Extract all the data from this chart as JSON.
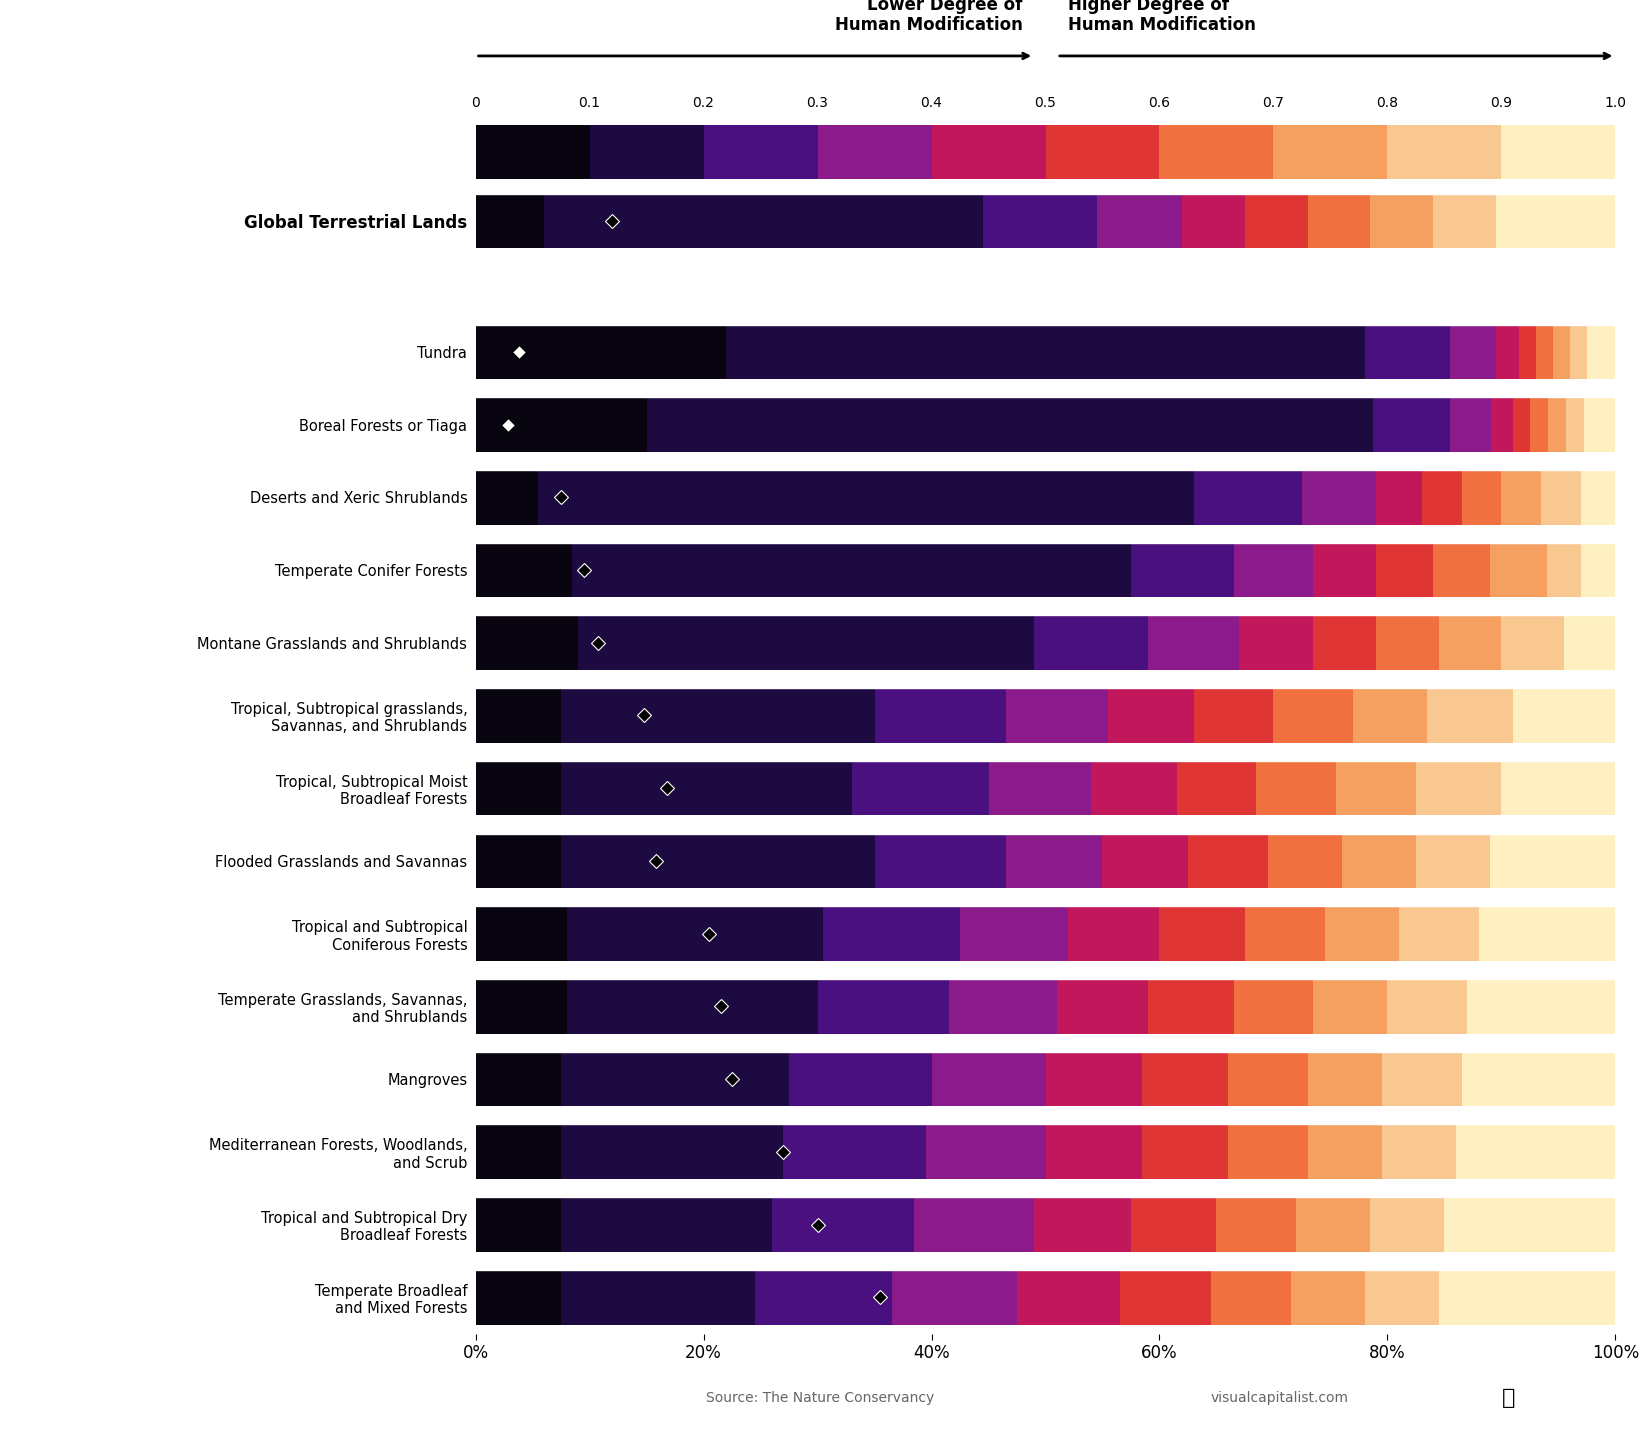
{
  "categories": [
    "Global Terrestrial Lands",
    "Tundra",
    "Boreal Forests or Tiaga",
    "Deserts and Xeric Shrublands",
    "Temperate Conifer Forests",
    "Montane Grasslands and Shrublands",
    "Tropical, Subtropical grasslands,\nSavannas, and Shrublands",
    "Tropical, Subtropical Moist\nBroadleaf Forests",
    "Flooded Grasslands and Savannas",
    "Tropical and Subtropical\nConiferous Forests",
    "Temperate Grasslands, Savannas,\nand Shrublands",
    "Mangroves",
    "Mediterranean Forests, Woodlands,\nand Scrub",
    "Tropical and Subtropical Dry\nBroadleaf Forests",
    "Temperate Broadleaf\nand Mixed Forests"
  ],
  "is_bold": [
    true,
    false,
    false,
    false,
    false,
    false,
    false,
    false,
    false,
    false,
    false,
    false,
    false,
    false,
    false
  ],
  "segments": [
    [
      0.06,
      0.385,
      0.1,
      0.075,
      0.055,
      0.055,
      0.055,
      0.055,
      0.055,
      0.105
    ],
    [
      0.22,
      0.56,
      0.075,
      0.04,
      0.02,
      0.015,
      0.015,
      0.015,
      0.015,
      0.025
    ],
    [
      0.145,
      0.615,
      0.065,
      0.035,
      0.018,
      0.015,
      0.015,
      0.015,
      0.015,
      0.027
    ],
    [
      0.055,
      0.575,
      0.095,
      0.065,
      0.04,
      0.035,
      0.035,
      0.035,
      0.035,
      0.03
    ],
    [
      0.085,
      0.49,
      0.09,
      0.07,
      0.055,
      0.05,
      0.05,
      0.05,
      0.03,
      0.03
    ],
    [
      0.09,
      0.4,
      0.1,
      0.08,
      0.065,
      0.055,
      0.055,
      0.055,
      0.055,
      0.045
    ],
    [
      0.075,
      0.275,
      0.115,
      0.09,
      0.075,
      0.07,
      0.07,
      0.065,
      0.075,
      0.09
    ],
    [
      0.075,
      0.255,
      0.12,
      0.09,
      0.075,
      0.07,
      0.07,
      0.07,
      0.075,
      0.1
    ],
    [
      0.075,
      0.275,
      0.115,
      0.085,
      0.075,
      0.07,
      0.065,
      0.065,
      0.065,
      0.11
    ],
    [
      0.08,
      0.225,
      0.12,
      0.095,
      0.08,
      0.075,
      0.07,
      0.065,
      0.07,
      0.12
    ],
    [
      0.08,
      0.22,
      0.115,
      0.095,
      0.08,
      0.075,
      0.07,
      0.065,
      0.07,
      0.13
    ],
    [
      0.075,
      0.2,
      0.125,
      0.1,
      0.085,
      0.075,
      0.07,
      0.065,
      0.07,
      0.135
    ],
    [
      0.075,
      0.195,
      0.125,
      0.105,
      0.085,
      0.075,
      0.07,
      0.065,
      0.065,
      0.14
    ],
    [
      0.075,
      0.185,
      0.125,
      0.105,
      0.085,
      0.075,
      0.07,
      0.065,
      0.065,
      0.15
    ],
    [
      0.075,
      0.17,
      0.12,
      0.11,
      0.09,
      0.08,
      0.07,
      0.065,
      0.065,
      0.155
    ]
  ],
  "mean_values": [
    0.12,
    0.038,
    0.028,
    0.075,
    0.095,
    0.107,
    0.148,
    0.168,
    0.158,
    0.205,
    0.215,
    0.225,
    0.27,
    0.3,
    0.355
  ],
  "colormap_colors": [
    "#080510",
    "#1d0a40",
    "#4b1080",
    "#8b1a8b",
    "#c0185a",
    "#e03535",
    "#f07040",
    "#f5a060",
    "#f8c890",
    "#fef0c0"
  ],
  "background_color": "#ffffff",
  "colorbar_ticks": [
    "0",
    "0.1",
    "0.2",
    "0.3",
    "0.4",
    "0.5",
    "0.6",
    "0.7",
    "0.8",
    "0.9",
    "1.0"
  ],
  "source_text": "Source: The Nature Conservancy",
  "website_text": "visualcapitalist.com",
  "xtick_labels": [
    "0%",
    "20%",
    "40%",
    "60%",
    "80%",
    "100%"
  ],
  "xtick_vals": [
    0.0,
    0.2,
    0.4,
    0.6,
    0.8,
    1.0
  ]
}
